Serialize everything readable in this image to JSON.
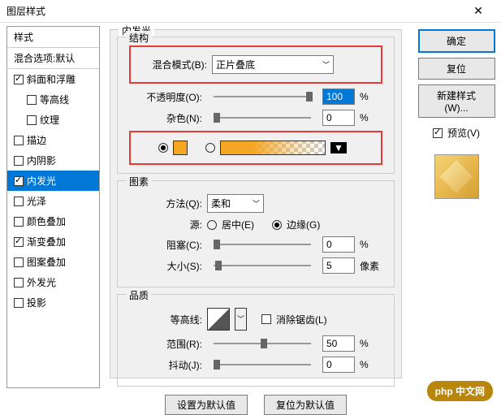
{
  "window": {
    "title": "图层样式"
  },
  "sidebar": {
    "header": "样式",
    "sub": "混合选项:默认",
    "items": [
      {
        "label": "斜面和浮雕",
        "checked": true,
        "indent": false
      },
      {
        "label": "等高线",
        "checked": false,
        "indent": true
      },
      {
        "label": "纹理",
        "checked": false,
        "indent": true
      },
      {
        "label": "描边",
        "checked": false,
        "indent": false
      },
      {
        "label": "内阴影",
        "checked": false,
        "indent": false
      },
      {
        "label": "内发光",
        "checked": true,
        "indent": false,
        "selected": true
      },
      {
        "label": "光泽",
        "checked": false,
        "indent": false
      },
      {
        "label": "颜色叠加",
        "checked": false,
        "indent": false
      },
      {
        "label": "渐变叠加",
        "checked": true,
        "indent": false
      },
      {
        "label": "图案叠加",
        "checked": false,
        "indent": false
      },
      {
        "label": "外发光",
        "checked": false,
        "indent": false
      },
      {
        "label": "投影",
        "checked": false,
        "indent": false
      }
    ]
  },
  "panel": {
    "title": "内发光",
    "structure": {
      "legend": "结构",
      "blend_label": "混合模式(B):",
      "blend_value": "正片叠底",
      "opacity_label": "不透明度(O):",
      "opacity_value": "100",
      "opacity_unit": "%",
      "noise_label": "杂色(N):",
      "noise_value": "0",
      "noise_unit": "%",
      "color_swatch": "#f5a623"
    },
    "elements": {
      "legend": "图素",
      "method_label": "方法(Q):",
      "method_value": "柔和",
      "source_label": "源:",
      "center_label": "居中(E)",
      "edge_label": "边缘(G)",
      "choke_label": "阻塞(C):",
      "choke_value": "0",
      "choke_unit": "%",
      "size_label": "大小(S):",
      "size_value": "5",
      "size_unit": "像素"
    },
    "quality": {
      "legend": "品质",
      "contour_label": "等高线:",
      "aa_label": "消除锯齿(L)",
      "range_label": "范围(R):",
      "range_value": "50",
      "range_unit": "%",
      "jitter_label": "抖动(J):",
      "jitter_value": "0",
      "jitter_unit": "%"
    },
    "buttons": {
      "default_set": "设置为默认值",
      "default_reset": "复位为默认值"
    }
  },
  "right": {
    "ok": "确定",
    "cancel": "复位",
    "newstyle": "新建样式(W)...",
    "preview_label": "预览(V)"
  },
  "watermark": "php 中文网"
}
